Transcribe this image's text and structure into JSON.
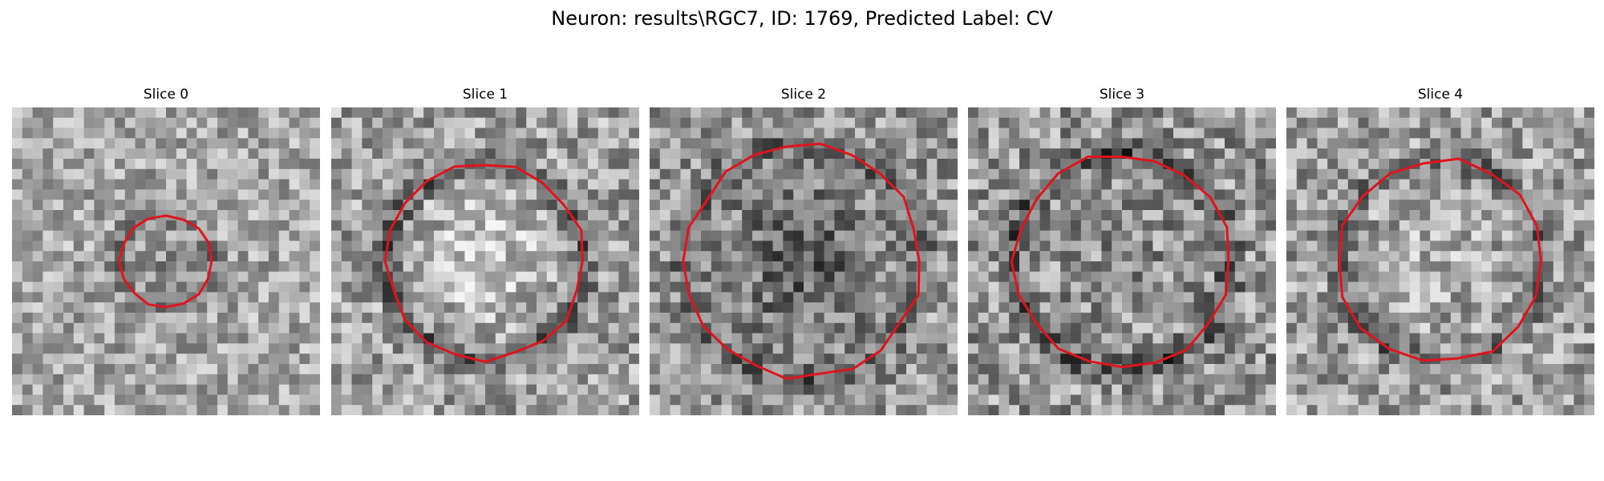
{
  "figure": {
    "title": "Neuron: results\\RGC7, ID: 1769, Predicted Label: CV"
  },
  "panels": [
    {
      "title": "Slice 0",
      "contour": {
        "center": [
          0.5,
          0.5
        ],
        "radius": 0.15,
        "points": 16
      }
    },
    {
      "title": "Slice 1",
      "contour": {
        "center": [
          0.5,
          0.5
        ],
        "radius": 0.32,
        "points": 20
      }
    },
    {
      "title": "Slice 2",
      "contour": {
        "center": [
          0.5,
          0.5
        ],
        "radius": 0.38,
        "points": 22
      }
    },
    {
      "title": "Slice 3",
      "contour": {
        "center": [
          0.5,
          0.5
        ],
        "radius": 0.35,
        "points": 20
      }
    },
    {
      "title": "Slice 4",
      "contour": {
        "center": [
          0.5,
          0.5
        ],
        "radius": 0.33,
        "points": 18
      }
    }
  ],
  "colors": {
    "contour": "#e0141c"
  },
  "image": {
    "grid": 30,
    "colormap": "gray"
  }
}
